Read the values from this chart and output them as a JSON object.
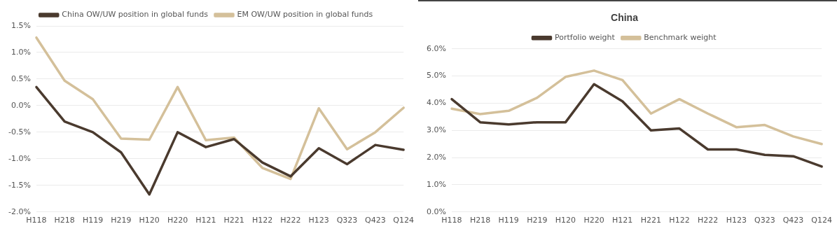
{
  "chart_data": [
    {
      "type": "line",
      "categories": [
        "H118",
        "H218",
        "H119",
        "H219",
        "H120",
        "H220",
        "H121",
        "H221",
        "H122",
        "H222",
        "H123",
        "Q323",
        "Q423",
        "Q124"
      ],
      "series": [
        {
          "name": "China OW/UW position in global funds",
          "color": "#4a3a2e",
          "values": [
            0.35,
            -0.3,
            -0.5,
            -0.88,
            -1.67,
            -0.5,
            -0.78,
            -0.63,
            -1.07,
            -1.33,
            -0.8,
            -1.1,
            -0.74,
            -0.83
          ]
        },
        {
          "name": "EM OW/UW position in global funds",
          "color": "#d4c09a",
          "values": [
            1.28,
            0.47,
            0.12,
            -0.62,
            -0.64,
            0.35,
            -0.65,
            -0.6,
            -1.17,
            -1.38,
            -0.05,
            -0.82,
            -0.5,
            -0.04
          ]
        }
      ],
      "ylim": [
        -2,
        1.5
      ],
      "yticks": [
        {
          "value": -2,
          "label": "-2.0%"
        },
        {
          "value": -1.5,
          "label": "-1.5%"
        },
        {
          "value": -1,
          "label": "-1.0%"
        },
        {
          "value": -0.5,
          "label": "-0.5%"
        },
        {
          "value": 0,
          "label": "0.0%"
        },
        {
          "value": 0.5,
          "label": "0.5%"
        },
        {
          "value": 1,
          "label": "1.0%"
        },
        {
          "value": 1.5,
          "label": "1.5%"
        }
      ],
      "grid": "y",
      "legend": "top",
      "marker": "none",
      "line_style": "solid"
    },
    {
      "type": "line",
      "title": "China",
      "categories": [
        "H118",
        "H218",
        "H119",
        "H219",
        "H120",
        "H220",
        "H121",
        "H221",
        "H122",
        "H222",
        "H123",
        "Q323",
        "Q423",
        "Q124"
      ],
      "series": [
        {
          "name": "Portfolio weight",
          "color": "#4a3a2e",
          "values": [
            4.15,
            3.3,
            3.22,
            3.3,
            3.3,
            4.7,
            4.07,
            3.0,
            3.07,
            2.3,
            2.3,
            2.1,
            2.05,
            1.67
          ]
        },
        {
          "name": "Benchmark weight",
          "color": "#d4c09a",
          "values": [
            3.8,
            3.6,
            3.72,
            4.2,
            4.97,
            5.2,
            4.85,
            3.62,
            4.15,
            3.62,
            3.12,
            3.2,
            2.78,
            2.5
          ]
        }
      ],
      "ylim": [
        0,
        6
      ],
      "yticks": [
        {
          "value": 0,
          "label": "0.0%"
        },
        {
          "value": 1,
          "label": "1.0%"
        },
        {
          "value": 2,
          "label": "2.0%"
        },
        {
          "value": 3,
          "label": "3.0%"
        },
        {
          "value": 4,
          "label": "4.0%"
        },
        {
          "value": 5,
          "label": "5.0%"
        },
        {
          "value": 6,
          "label": "6.0%"
        }
      ],
      "grid": "y",
      "legend": "top",
      "marker": "none",
      "line_style": "solid"
    }
  ]
}
